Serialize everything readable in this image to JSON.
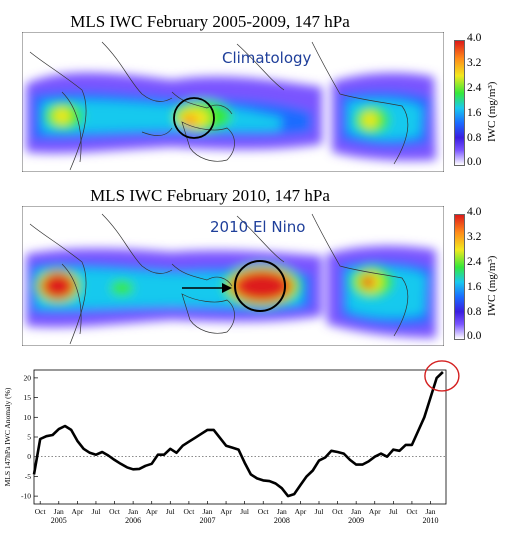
{
  "panels": [
    {
      "title": "MLS IWC  February 2005-2009,  147 hPa",
      "annotation": "Climatology",
      "colorbar": {
        "label": "IWC (mg/m³)",
        "ticks": [
          "4.0",
          "3.2",
          "2.4",
          "1.6",
          "0.8",
          "0.0"
        ],
        "range": [
          0.0,
          4.0
        ],
        "colors": [
          "#ffffff",
          "#7a55ff",
          "#3a1de0",
          "#1a6cff",
          "#19c9ee",
          "#35e83a",
          "#f2e81e",
          "#ff8a1a",
          "#dd1a1a"
        ]
      }
    },
    {
      "title": "MLS IWC  February 2010,  147 hPa",
      "annotation": "2010 El Nino",
      "colorbar": {
        "label": "IWC (mg/m³)",
        "ticks": [
          "4.0",
          "3.2",
          "2.4",
          "1.6",
          "0.8",
          "0.0"
        ],
        "range": [
          0.0,
          4.0
        ],
        "colors": [
          "#ffffff",
          "#7a55ff",
          "#3a1de0",
          "#1a6cff",
          "#19c9ee",
          "#35e83a",
          "#f2e81e",
          "#ff8a1a",
          "#dd1a1a"
        ]
      }
    }
  ],
  "chart_data": {
    "type": "line",
    "title": "",
    "xlabel": "",
    "ylabel": "MLS 147hPa IWC Anomaly (%)",
    "ylim": [
      -12,
      22
    ],
    "xlim": [
      0,
      64
    ],
    "yticks": [
      -10,
      -5,
      0,
      5,
      10,
      15,
      20
    ],
    "xticks": [
      {
        "m": 1,
        "label": "Oct"
      },
      {
        "m": 4,
        "label": "Jan"
      },
      {
        "m": 7,
        "label": "Apr"
      },
      {
        "m": 10,
        "label": "Jul"
      },
      {
        "m": 13,
        "label": "Oct"
      },
      {
        "m": 16,
        "label": "Jan"
      },
      {
        "m": 19,
        "label": "Apr"
      },
      {
        "m": 22,
        "label": "Jul"
      },
      {
        "m": 25,
        "label": "Oct"
      },
      {
        "m": 28,
        "label": "Jan"
      },
      {
        "m": 31,
        "label": "Apr"
      },
      {
        "m": 34,
        "label": "Jul"
      },
      {
        "m": 37,
        "label": "Oct"
      },
      {
        "m": 40,
        "label": "Jan"
      },
      {
        "m": 43,
        "label": "Apr"
      },
      {
        "m": 46,
        "label": "Jul"
      },
      {
        "m": 49,
        "label": "Oct"
      },
      {
        "m": 52,
        "label": "Jan"
      },
      {
        "m": 55,
        "label": "Apr"
      },
      {
        "m": 58,
        "label": "Jul"
      },
      {
        "m": 61,
        "label": "Oct"
      },
      {
        "m": 64,
        "label": "Jan"
      }
    ],
    "years": [
      {
        "m": 4,
        "label": "2005"
      },
      {
        "m": 16,
        "label": "2006"
      },
      {
        "m": 28,
        "label": "2007"
      },
      {
        "m": 40,
        "label": "2008"
      },
      {
        "m": 52,
        "label": "2009"
      },
      {
        "m": 64,
        "label": "2010"
      }
    ],
    "series": [
      {
        "values": [
          [
            0,
            -4.5
          ],
          [
            1,
            4.5
          ],
          [
            2,
            5.2
          ],
          [
            3,
            5.5
          ],
          [
            4,
            7.0
          ],
          [
            5,
            7.8
          ],
          [
            6,
            6.8
          ],
          [
            7,
            4.0
          ],
          [
            8,
            2.0
          ],
          [
            9,
            1.0
          ],
          [
            10,
            0.5
          ],
          [
            11,
            1.2
          ],
          [
            12,
            0.3
          ],
          [
            13,
            -0.8
          ],
          [
            14,
            -1.8
          ],
          [
            15,
            -2.7
          ],
          [
            16,
            -3.2
          ],
          [
            17,
            -3.1
          ],
          [
            18,
            -2.3
          ],
          [
            19,
            -1.8
          ],
          [
            20,
            0.5
          ],
          [
            21,
            0.5
          ],
          [
            22,
            2.0
          ],
          [
            23,
            1.0
          ],
          [
            24,
            2.8
          ],
          [
            25,
            3.8
          ],
          [
            26,
            4.8
          ],
          [
            27,
            5.8
          ],
          [
            28,
            6.8
          ],
          [
            29,
            6.8
          ],
          [
            30,
            4.8
          ],
          [
            31,
            2.8
          ],
          [
            32,
            2.3
          ],
          [
            33,
            1.8
          ],
          [
            34,
            -1.5
          ],
          [
            35,
            -4.5
          ],
          [
            36,
            -5.5
          ],
          [
            37,
            -6.0
          ],
          [
            38,
            -6.2
          ],
          [
            39,
            -6.8
          ],
          [
            40,
            -8.0
          ],
          [
            41,
            -10.0
          ],
          [
            42,
            -9.5
          ],
          [
            43,
            -7.2
          ],
          [
            44,
            -5.0
          ],
          [
            45,
            -3.5
          ],
          [
            46,
            -1.0
          ],
          [
            47,
            -0.2
          ],
          [
            48,
            1.5
          ],
          [
            49,
            1.2
          ],
          [
            50,
            0.8
          ],
          [
            51,
            -0.8
          ],
          [
            52,
            -2.0
          ],
          [
            53,
            -2.0
          ],
          [
            54,
            -1.2
          ],
          [
            55,
            0.0
          ],
          [
            56,
            0.8
          ],
          [
            57,
            0.0
          ],
          [
            58,
            1.8
          ],
          [
            59,
            1.5
          ],
          [
            60,
            3.0
          ],
          [
            61,
            3.0
          ],
          [
            62,
            6.5
          ],
          [
            63,
            10.0
          ],
          [
            64,
            15.0
          ],
          [
            65,
            20.0
          ],
          [
            66,
            21.5
          ]
        ]
      }
    ],
    "grid": false,
    "reference_line": 0
  }
}
